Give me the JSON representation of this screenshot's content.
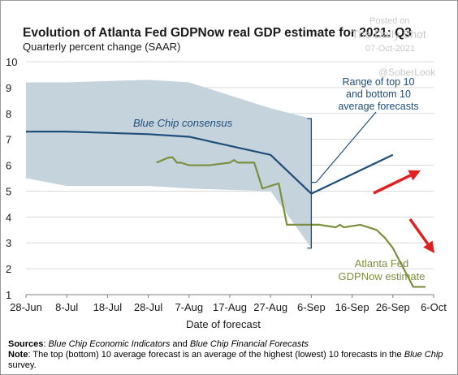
{
  "chart_data": {
    "type": "line",
    "title": "Evolution of Atlanta Fed GDPNow real GDP estimate for 2021: Q3",
    "subtitle": "Quarterly percent change (SAAR)",
    "xlabel": "Date of forecast",
    "ylabel": "",
    "x_tick_labels": [
      "28-Jun",
      "8-Jul",
      "18-Jul",
      "28-Jul",
      "7-Aug",
      "17-Aug",
      "27-Aug",
      "6-Sep",
      "16-Sep",
      "26-Sep",
      "6-Oct"
    ],
    "x_tick_days": [
      0,
      10,
      20,
      30,
      40,
      50,
      60,
      70,
      80,
      90,
      100
    ],
    "y_tick_labels": [
      "1",
      "2",
      "3",
      "4",
      "5",
      "6",
      "7",
      "8",
      "9",
      "10"
    ],
    "ylim": [
      1,
      10
    ],
    "xlim_days": [
      0,
      100
    ],
    "grid": true,
    "band": {
      "name": "Range of top 10 and bottom 10 average forecasts",
      "x": [
        0,
        10,
        20,
        30,
        40,
        50,
        60,
        70
      ],
      "upper": [
        9.2,
        9.2,
        9.25,
        9.3,
        9.2,
        8.7,
        8.2,
        7.8
      ],
      "lower": [
        5.5,
        5.2,
        5.2,
        5.2,
        5.1,
        5.05,
        5.0,
        2.8
      ]
    },
    "series": [
      {
        "name": "Blue Chip consensus",
        "color": "#1f4e79",
        "x": [
          0,
          10,
          20,
          30,
          40,
          50,
          60,
          70,
          90
        ],
        "values": [
          7.3,
          7.3,
          7.25,
          7.2,
          7.1,
          6.75,
          6.4,
          4.9,
          6.4
        ]
      },
      {
        "name": "Atlanta Fed GDPNow estimate",
        "color": "#7b8f3f",
        "x": [
          32,
          35,
          36,
          37,
          38,
          40,
          45,
          50,
          51,
          52,
          56,
          58,
          62,
          64,
          66,
          68,
          70,
          72,
          74,
          76,
          77,
          78,
          82,
          84,
          86,
          88,
          90,
          92,
          94,
          95,
          96,
          97,
          98
        ],
        "values": [
          6.1,
          6.3,
          6.3,
          6.1,
          6.1,
          6.0,
          6.0,
          6.1,
          6.2,
          6.1,
          6.1,
          5.1,
          5.3,
          3.7,
          3.7,
          3.7,
          3.7,
          3.7,
          3.65,
          3.6,
          3.7,
          3.6,
          3.7,
          3.6,
          3.5,
          3.2,
          2.8,
          2.2,
          1.6,
          1.3,
          1.3,
          1.3,
          1.3
        ]
      }
    ],
    "annotations": {
      "blue_chip_label": "Blue Chip consensus",
      "range_label_1": "Range of top 10",
      "range_label_2": "and bottom 10",
      "range_label_3": "average forecasts",
      "gdpnow_label_1": "Atlanta Fed",
      "gdpnow_label_2": "GDPNow estimate"
    },
    "colors": {
      "band": "#c5d3dc",
      "grid": "#d9d9d9",
      "arrow": "#e02020"
    }
  },
  "watermark": {
    "posted_on": "Posted on",
    "source": "The Daily Shot",
    "date": "07-Oct-2021",
    "handle": "@SoberLook"
  },
  "footer": {
    "sources_label": "Sources",
    "sources_sep": ": ",
    "source_1": "Blue Chip Economic Indicators",
    "source_join": " and ",
    "source_2": "Blue Chip Financial Forecasts",
    "note_label": "Note",
    "note_text_1": ": The top (bottom) 10 average forecast is an average of the highest (lowest) 10 forecasts in the ",
    "note_text_2": "Blue Chip",
    "note_text_3": " survey."
  }
}
